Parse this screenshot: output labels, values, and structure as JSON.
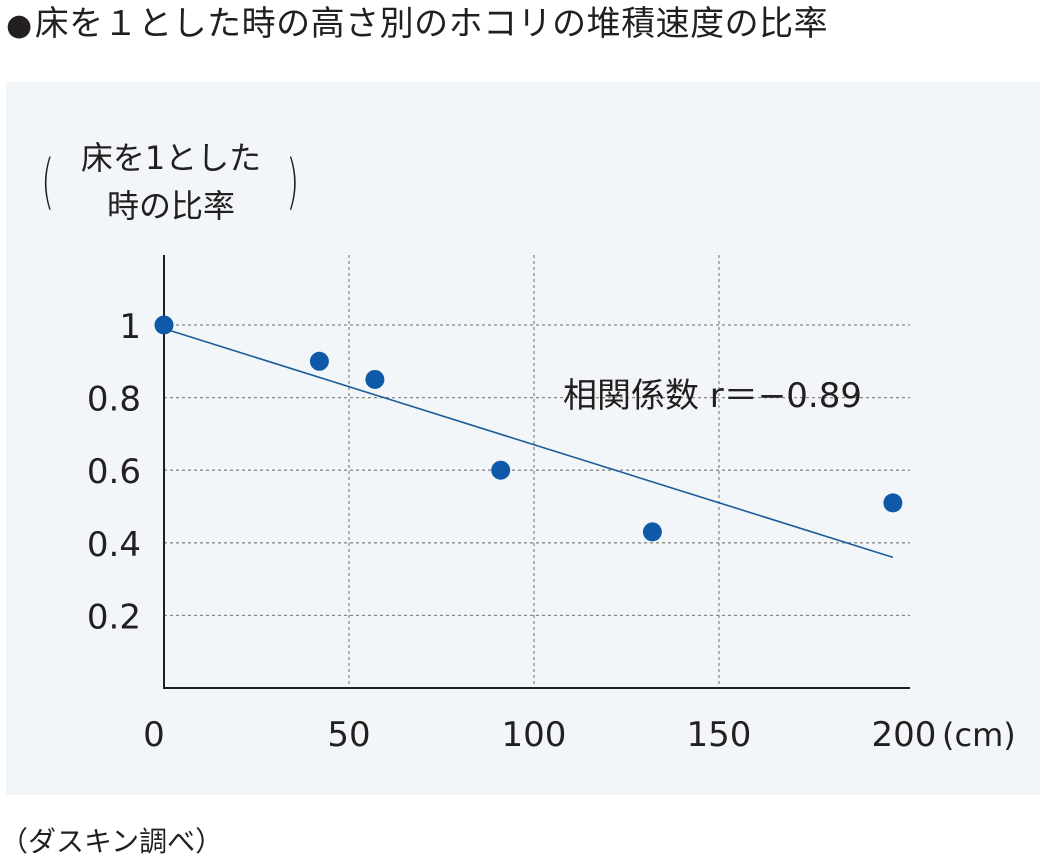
{
  "title": "床を１とした時の高さ別のホコリの堆積速度の比率",
  "title_bullet": "●",
  "source": "（ダスキン調べ）",
  "chart_data": {
    "type": "scatter",
    "ylabel_line1": "床を1とした",
    "ylabel_line2": "時の比率",
    "xlabel": "(cm)",
    "x_ticks": [
      "0",
      "50",
      "100",
      "150",
      "200"
    ],
    "y_ticks": [
      "0.2",
      "0.4",
      "0.6",
      "0.8",
      "1"
    ],
    "xlim": [
      0,
      200
    ],
    "ylim": [
      0,
      1.15
    ],
    "grid": true,
    "points": [
      {
        "x": 0,
        "y": 1.0
      },
      {
        "x": 42,
        "y": 0.9
      },
      {
        "x": 57,
        "y": 0.85
      },
      {
        "x": 91,
        "y": 0.6
      },
      {
        "x": 132,
        "y": 0.43
      },
      {
        "x": 197,
        "y": 0.51
      }
    ],
    "trendline": {
      "x": [
        0,
        197
      ],
      "y": [
        0.99,
        0.36
      ]
    },
    "annotation": "相関係数 r＝−0.89",
    "colors": {
      "point": "#0f5aa8",
      "line": "#1a5b9a",
      "grid": "#8a8a8a",
      "axis": "#231f20"
    }
  }
}
